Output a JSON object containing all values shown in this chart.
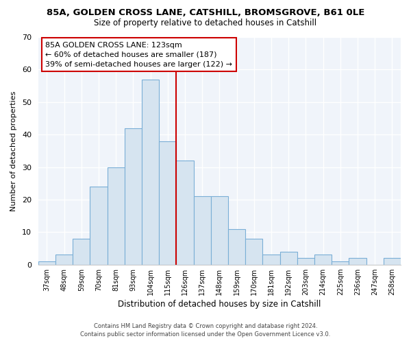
{
  "title1": "85A, GOLDEN CROSS LANE, CATSHILL, BROMSGROVE, B61 0LE",
  "title2": "Size of property relative to detached houses in Catshill",
  "xlabel": "Distribution of detached houses by size in Catshill",
  "ylabel": "Number of detached properties",
  "bar_labels": [
    "37sqm",
    "48sqm",
    "59sqm",
    "70sqm",
    "81sqm",
    "93sqm",
    "104sqm",
    "115sqm",
    "126sqm",
    "137sqm",
    "148sqm",
    "159sqm",
    "170sqm",
    "181sqm",
    "192sqm",
    "203sqm",
    "214sqm",
    "225sqm",
    "236sqm",
    "247sqm",
    "258sqm"
  ],
  "bar_values": [
    1,
    3,
    8,
    24,
    30,
    42,
    57,
    38,
    32,
    21,
    21,
    11,
    8,
    3,
    4,
    2,
    3,
    1,
    2,
    0,
    2
  ],
  "bar_color": "#d6e4f0",
  "bar_edgecolor": "#7aaed6",
  "vline_color": "#cc0000",
  "ylim": [
    0,
    70
  ],
  "yticks": [
    0,
    10,
    20,
    30,
    40,
    50,
    60,
    70
  ],
  "annotation_title": "85A GOLDEN CROSS LANE: 123sqm",
  "annotation_line1": "← 60% of detached houses are smaller (187)",
  "annotation_line2": "39% of semi-detached houses are larger (122) →",
  "annotation_box_color": "#ffffff",
  "annotation_border_color": "#cc0000",
  "footer_line1": "Contains HM Land Registry data © Crown copyright and database right 2024.",
  "footer_line2": "Contains public sector information licensed under the Open Government Licence v3.0.",
  "background_color": "#ffffff",
  "plot_bg_color": "#f0f4fa"
}
